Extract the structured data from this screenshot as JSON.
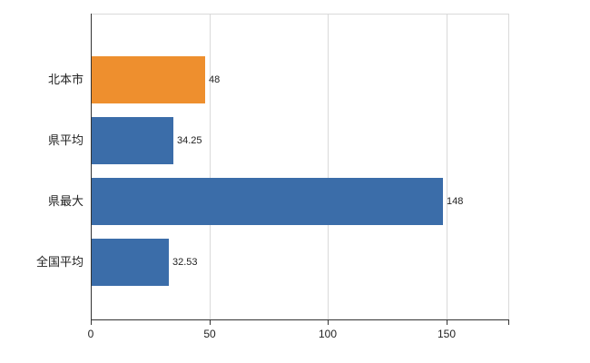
{
  "chart_data": {
    "type": "bar",
    "orientation": "horizontal",
    "title": "",
    "xlabel": "",
    "ylabel": "",
    "categories": [
      "北本市",
      "県平均",
      "県最大",
      "全国平均"
    ],
    "values": [
      48,
      34.25,
      148,
      32.53
    ],
    "value_labels": [
      "48",
      "34.25",
      "148",
      "32.53"
    ],
    "bar_colors": [
      "#ee8f2e",
      "#3b6da9",
      "#3b6da9",
      "#3b6da9"
    ],
    "x_ticks": [
      0,
      50,
      100,
      150
    ],
    "x_tick_labels": [
      "0",
      "50",
      "100",
      "150"
    ],
    "xlim": [
      0,
      176
    ],
    "grid": true,
    "legend": "none",
    "colors": {
      "highlight_bar": "#ee8f2e",
      "default_bar": "#3b6da9",
      "axis": "#333333",
      "grid": "#d9d9d9"
    }
  }
}
